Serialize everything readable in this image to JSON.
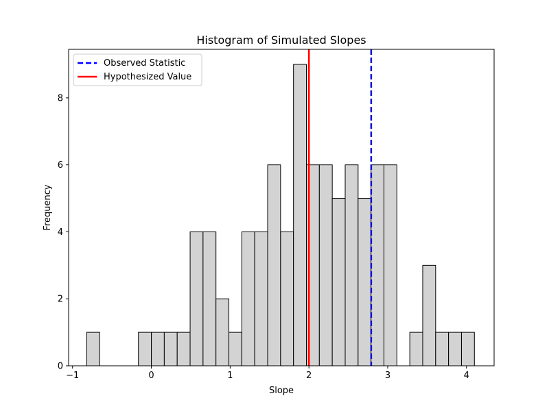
{
  "chart_data": {
    "type": "bar",
    "title": "Histogram of Simulated Slopes",
    "xlabel": "Slope",
    "ylabel": "Frequency",
    "xlim": [
      -1.05,
      4.35
    ],
    "ylim": [
      0,
      9.45
    ],
    "x_ticks": [
      -1,
      0,
      1,
      2,
      3,
      4
    ],
    "y_ticks": [
      0,
      2,
      4,
      6,
      8
    ],
    "grid": false,
    "legend_position": "top-left",
    "bin_width": 0.164,
    "bins": [
      {
        "left": -0.82,
        "count": 1
      },
      {
        "left": -0.164,
        "count": 1
      },
      {
        "left": 0.0,
        "count": 1
      },
      {
        "left": 0.164,
        "count": 1
      },
      {
        "left": 0.328,
        "count": 1
      },
      {
        "left": 0.492,
        "count": 4
      },
      {
        "left": 0.656,
        "count": 4
      },
      {
        "left": 0.82,
        "count": 2
      },
      {
        "left": 0.984,
        "count": 1
      },
      {
        "left": 1.148,
        "count": 4
      },
      {
        "left": 1.312,
        "count": 4
      },
      {
        "left": 1.476,
        "count": 6
      },
      {
        "left": 1.64,
        "count": 4
      },
      {
        "left": 1.804,
        "count": 9
      },
      {
        "left": 1.968,
        "count": 6
      },
      {
        "left": 2.132,
        "count": 6
      },
      {
        "left": 2.296,
        "count": 5
      },
      {
        "left": 2.46,
        "count": 6
      },
      {
        "left": 2.624,
        "count": 5
      },
      {
        "left": 2.788,
        "count": 6
      },
      {
        "left": 2.952,
        "count": 6
      },
      {
        "left": 3.28,
        "count": 1
      },
      {
        "left": 3.444,
        "count": 3
      },
      {
        "left": 3.608,
        "count": 1
      },
      {
        "left": 3.772,
        "count": 1
      },
      {
        "left": 3.936,
        "count": 1
      }
    ],
    "reference_lines": [
      {
        "name": "Observed Statistic",
        "x": 2.79,
        "color": "#0000ff",
        "style": "dashed"
      },
      {
        "name": "Hypothesized Value",
        "x": 2.0,
        "color": "#ff0000",
        "style": "solid"
      }
    ],
    "bar_fill": "#d3d3d3",
    "bar_edge": "#000000"
  }
}
